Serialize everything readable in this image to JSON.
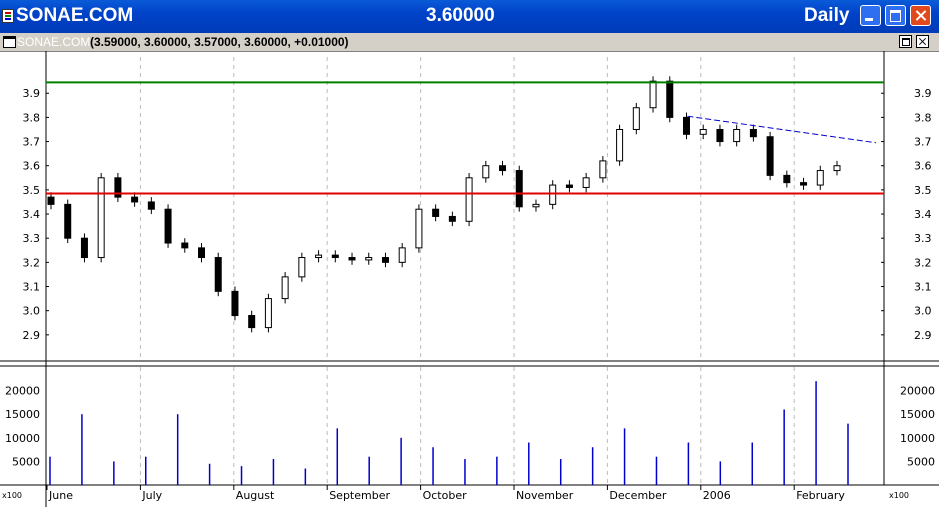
{
  "window": {
    "title": "SONAE.COM",
    "price": "3.60000",
    "period": "Daily"
  },
  "subwindow": {
    "name": "SONAE.COM",
    "ohlc": "(3.59000, 3.60000, 3.57000, 3.60000, +0.01000)"
  },
  "colors": {
    "resistance": "#008000",
    "support": "#e00000",
    "trendline": "#0000cc",
    "volume": "#0000cc",
    "grid": "#bbbbbb"
  },
  "chart_data": [
    {
      "type": "candlestick",
      "title": "",
      "ylim": [
        2.8,
        4.05
      ],
      "y_ticks": [
        "2.9",
        "3.0",
        "3.1",
        "3.2",
        "3.3",
        "3.4",
        "3.5",
        "3.6",
        "3.7",
        "3.8",
        "3.9"
      ],
      "x_labels": [
        "June",
        "July",
        "August",
        "September",
        "October",
        "November",
        "December",
        "2006",
        "February"
      ],
      "horizontal_lines": [
        {
          "name": "resistance",
          "value": 3.945
        },
        {
          "name": "support",
          "value": 3.485
        }
      ],
      "trendline": {
        "from": [
          "December",
          3.805
        ],
        "to": [
          "February",
          3.695
        ]
      },
      "close_path": [
        [
          "June",
          3.44
        ],
        [
          "June",
          3.3
        ],
        [
          "June",
          3.22
        ],
        [
          "June",
          3.55
        ],
        [
          "June",
          3.47
        ],
        [
          "June",
          3.45
        ],
        [
          "June",
          3.42
        ],
        [
          "June",
          3.28
        ],
        [
          "July",
          3.26
        ],
        [
          "July",
          3.22
        ],
        [
          "July",
          3.08
        ],
        [
          "July",
          2.98
        ],
        [
          "July",
          2.93
        ],
        [
          "July",
          3.05
        ],
        [
          "July",
          3.14
        ],
        [
          "August",
          3.22
        ],
        [
          "August",
          3.23
        ],
        [
          "August",
          3.22
        ],
        [
          "August",
          3.21
        ],
        [
          "August",
          3.22
        ],
        [
          "September",
          3.2
        ],
        [
          "September",
          3.26
        ],
        [
          "September",
          3.42
        ],
        [
          "September",
          3.39
        ],
        [
          "September",
          3.37
        ],
        [
          "October",
          3.55
        ],
        [
          "October",
          3.6
        ],
        [
          "October",
          3.58
        ],
        [
          "October",
          3.43
        ],
        [
          "October",
          3.44
        ],
        [
          "November",
          3.52
        ],
        [
          "November",
          3.51
        ],
        [
          "November",
          3.55
        ],
        [
          "November",
          3.62
        ],
        [
          "November",
          3.75
        ],
        [
          "November",
          3.84
        ],
        [
          "December",
          3.95
        ],
        [
          "December",
          3.8
        ],
        [
          "December",
          3.73
        ],
        [
          "December",
          3.75
        ],
        [
          "2006",
          3.7
        ],
        [
          "2006",
          3.75
        ],
        [
          "2006",
          3.72
        ],
        [
          "2006",
          3.56
        ],
        [
          "2006",
          3.53
        ],
        [
          "February",
          3.52
        ],
        [
          "February",
          3.58
        ],
        [
          "February",
          3.6
        ]
      ]
    },
    {
      "type": "bar",
      "title": "",
      "ylim": [
        0,
        25000
      ],
      "y_ticks": [
        "5000",
        "10000",
        "15000",
        "20000"
      ],
      "y_unit": "x100",
      "x_labels": [
        "June",
        "July",
        "August",
        "September",
        "October",
        "November",
        "December",
        "2006",
        "February"
      ],
      "approx_volumes": [
        6000,
        15000,
        5000,
        6000,
        15000,
        4500,
        4000,
        5500,
        3500,
        12000,
        6000,
        10000,
        8000,
        5500,
        6000,
        9000,
        5500,
        8000,
        12000,
        6000,
        9000,
        5000,
        9000,
        16000,
        22000,
        13000
      ]
    }
  ]
}
